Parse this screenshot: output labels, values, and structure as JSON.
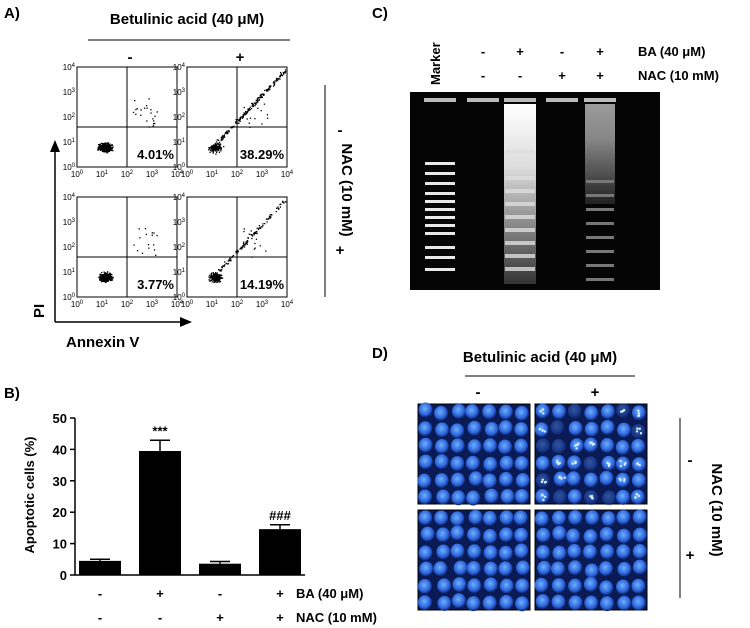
{
  "panel_a": {
    "label": "A)",
    "header": "Betulinic acid (40 μM)",
    "columns": [
      "-",
      "+"
    ],
    "side_label": "NAC (10 mM)",
    "rows": [
      "-",
      "+"
    ],
    "y_label": "PI",
    "x_label": "Annexin V",
    "tick_base": "10",
    "tick_exponents": [
      "0",
      "1",
      "2",
      "3",
      "4"
    ],
    "percentages": [
      "4.01%",
      "38.29%",
      "3.77%",
      "14.19%"
    ]
  },
  "panel_b": {
    "label": "B)"
  },
  "chart_data": {
    "type": "bar",
    "y_label": "Apoptotic cells (%)",
    "categories": [
      null,
      null,
      null,
      null
    ],
    "values": [
      4.5,
      39.5,
      3.6,
      14.6
    ],
    "errors": [
      0.5,
      3.4,
      0.7,
      1.4
    ],
    "annotations": [
      null,
      "***",
      null,
      "###"
    ],
    "color": "#000000",
    "ylim": [
      0,
      50
    ],
    "yticks": [
      0,
      10,
      20,
      30,
      40,
      50
    ],
    "treatments": [
      {
        "name": "BA (40 μM)",
        "signs": [
          "-",
          "+",
          "-",
          "+"
        ]
      },
      {
        "name": "NAC (10 mM)",
        "signs": [
          "-",
          "-",
          "+",
          "+"
        ]
      }
    ]
  },
  "panel_c": {
    "label": "C)",
    "marker": "Marker",
    "treatments": [
      {
        "name": "BA (40 μM)",
        "signs": [
          "-",
          "+",
          "-",
          "+"
        ]
      },
      {
        "name": "NAC (10 mM)",
        "signs": [
          "-",
          "-",
          "+",
          "+"
        ]
      }
    ]
  },
  "panel_d": {
    "label": "D)",
    "header": "Betulinic acid (40 μM)",
    "columns": [
      "-",
      "+"
    ],
    "side_label": "NAC (10 mM)",
    "rows": [
      "-",
      "+"
    ]
  }
}
